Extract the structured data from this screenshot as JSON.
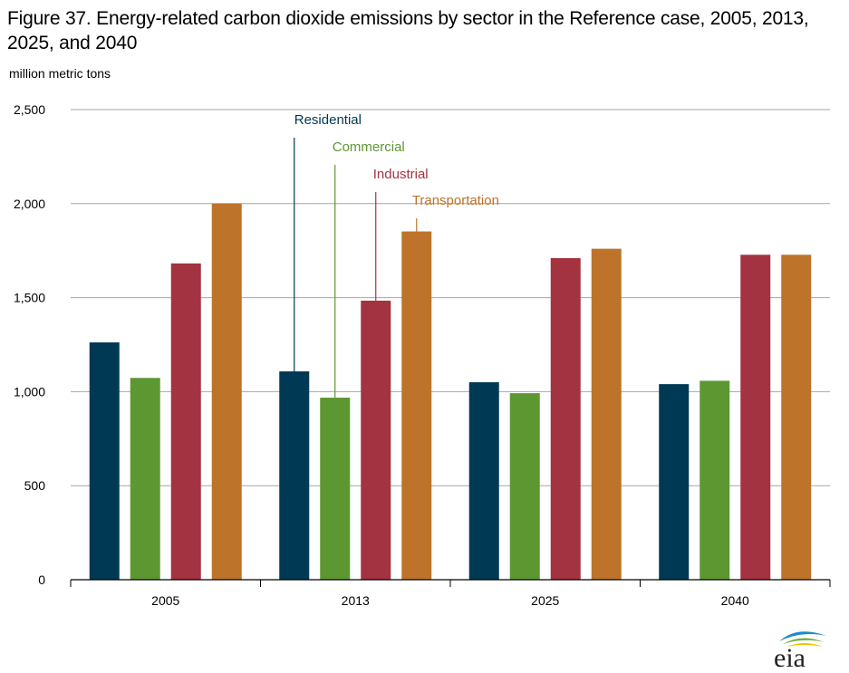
{
  "title": "Figure 37. Energy-related carbon dioxide emissions by sector in the Reference case, 2005, 2013, 2025, and 2040",
  "units_label": "million  metric  tons",
  "logo_text": "eia",
  "chart_data": {
    "type": "bar",
    "categories": [
      "2005",
      "2013",
      "2025",
      "2040"
    ],
    "series": [
      {
        "name": "Residential",
        "color": "#003953",
        "values": [
          1262,
          1108,
          1050,
          1040
        ]
      },
      {
        "name": "Commercial",
        "color": "#5d9732",
        "values": [
          1073,
          968,
          992,
          1058
        ]
      },
      {
        "name": "Industrial",
        "color": "#a33340",
        "values": [
          1682,
          1484,
          1710,
          1728
        ]
      },
      {
        "name": "Transportation",
        "color": "#bd732a",
        "values": [
          2000,
          1852,
          1760,
          1728
        ]
      }
    ],
    "ylim": [
      0,
      2500
    ],
    "yticks": [
      0,
      500,
      1000,
      1500,
      2000,
      2500
    ],
    "ytick_labels": [
      "0",
      "500",
      "1,000",
      "1,500",
      "2,000",
      "2,500"
    ],
    "grid": true,
    "legend": "inline labels with leader lines above 2013 bars"
  }
}
